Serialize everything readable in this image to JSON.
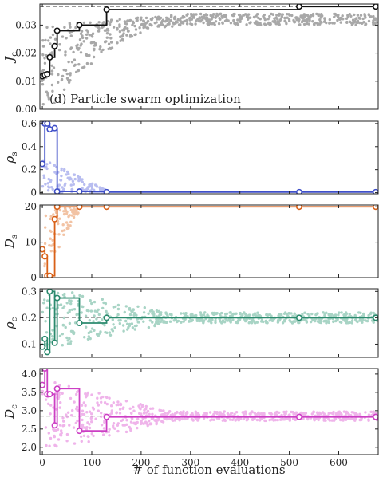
{
  "xlabel": "# of function evaluations",
  "annotation": "(d) Particle swarm optimization",
  "xlim": [
    -5,
    680
  ],
  "xticks": [
    0,
    100,
    200,
    300,
    400,
    500,
    600
  ],
  "chart_data": [
    {
      "type": "line",
      "ylabel_main": "J",
      "ylabel_sub": "c",
      "color": "#111111",
      "scatter_color": "#a8a8a8",
      "ylim": [
        0,
        0.0375
      ],
      "yticks": [
        0,
        0.01,
        0.02,
        0.03
      ],
      "ytick_labels": [
        "0.00",
        "0.01",
        "0.02",
        "0.03"
      ],
      "reference": 0.0365,
      "step_x": [
        0,
        5,
        10,
        15,
        25,
        30,
        75,
        130,
        520,
        675
      ],
      "step_y": [
        0.0118,
        0.0122,
        0.0125,
        0.0185,
        0.0225,
        0.028,
        0.03,
        0.0355,
        0.0366,
        0.0366
      ],
      "markers_x": [
        0,
        5,
        10,
        15,
        25,
        30,
        75,
        130,
        520,
        675
      ],
      "markers_y": [
        0.0118,
        0.0122,
        0.0125,
        0.0185,
        0.0225,
        0.028,
        0.03,
        0.0355,
        0.0366,
        0.0366
      ]
    },
    {
      "type": "line",
      "ylabel_main": "ρ",
      "ylabel_sub": "s",
      "color": "#3f4fc8",
      "scatter_color": "#b8bdf0",
      "ylim": [
        -0.01,
        0.62
      ],
      "yticks": [
        0,
        0.2,
        0.4,
        0.6
      ],
      "ytick_labels": [
        "0",
        "0.2",
        "0.4",
        "0.6"
      ],
      "step_x": [
        0,
        5,
        10,
        15,
        25,
        30,
        75,
        130,
        520,
        675
      ],
      "step_y": [
        0.25,
        0.6,
        0.6,
        0.55,
        0.56,
        0.01,
        0.01,
        0.005,
        0.005,
        0.005
      ],
      "markers_x": [
        0,
        5,
        10,
        15,
        25,
        30,
        75,
        130,
        520,
        675
      ],
      "markers_y": [
        0.25,
        0.6,
        0.6,
        0.55,
        0.56,
        0.01,
        0.01,
        0.005,
        0.005,
        0.005
      ]
    },
    {
      "type": "line",
      "ylabel_main": "D",
      "ylabel_sub": "s",
      "color": "#d96118",
      "scatter_color": "#f2c3a4",
      "ylim": [
        0,
        20.5
      ],
      "yticks": [
        0,
        10,
        20
      ],
      "ytick_labels": [
        "0",
        "10",
        "20"
      ],
      "step_x": [
        0,
        5,
        10,
        15,
        25,
        30,
        75,
        130,
        520,
        675
      ],
      "step_y": [
        8,
        6,
        0.5,
        0.5,
        16.5,
        20,
        20,
        20,
        20,
        20
      ],
      "markers_x": [
        0,
        5,
        10,
        15,
        25,
        30,
        75,
        130,
        520,
        675
      ],
      "markers_y": [
        8,
        6,
        0.5,
        0.5,
        16.5,
        20,
        20,
        20,
        20,
        20
      ]
    },
    {
      "type": "line",
      "ylabel_main": "ρ",
      "ylabel_sub": "c",
      "color": "#2b8a6e",
      "scatter_color": "#a8d4c5",
      "ylim": [
        0.05,
        0.31
      ],
      "yticks": [
        0.1,
        0.2,
        0.3
      ],
      "ytick_labels": [
        "0.1",
        "0.2",
        "0.3"
      ],
      "reference": 0.2,
      "step_x": [
        0,
        5,
        10,
        15,
        25,
        30,
        75,
        130,
        520,
        675
      ],
      "step_y": [
        0.09,
        0.12,
        0.07,
        0.3,
        0.105,
        0.275,
        0.18,
        0.2,
        0.2,
        0.2
      ],
      "markers_x": [
        0,
        5,
        10,
        15,
        25,
        30,
        75,
        130,
        520,
        675
      ],
      "markers_y": [
        0.09,
        0.12,
        0.07,
        0.3,
        0.105,
        0.275,
        0.18,
        0.2,
        0.2,
        0.2
      ]
    },
    {
      "type": "line",
      "ylabel_main": "D",
      "ylabel_sub": "c",
      "color": "#cc3fc4",
      "scatter_color": "#efb4ea",
      "ylim": [
        1.8,
        4.15
      ],
      "yticks": [
        2.0,
        2.5,
        3.0,
        3.5,
        4.0
      ],
      "ytick_labels": [
        "2.0",
        "2.5",
        "3.0",
        "3.5",
        "4.0"
      ],
      "reference": 2.85,
      "step_x": [
        0,
        5,
        10,
        15,
        25,
        30,
        75,
        130,
        520,
        675
      ],
      "step_y": [
        3.7,
        4.15,
        3.45,
        3.45,
        2.6,
        3.6,
        2.45,
        2.83,
        2.83,
        2.83
      ],
      "markers_x": [
        0,
        5,
        10,
        15,
        25,
        30,
        75,
        130,
        520,
        675
      ],
      "markers_y": [
        3.7,
        4.15,
        3.45,
        3.45,
        2.6,
        3.6,
        2.45,
        2.83,
        2.83,
        2.83
      ]
    }
  ]
}
